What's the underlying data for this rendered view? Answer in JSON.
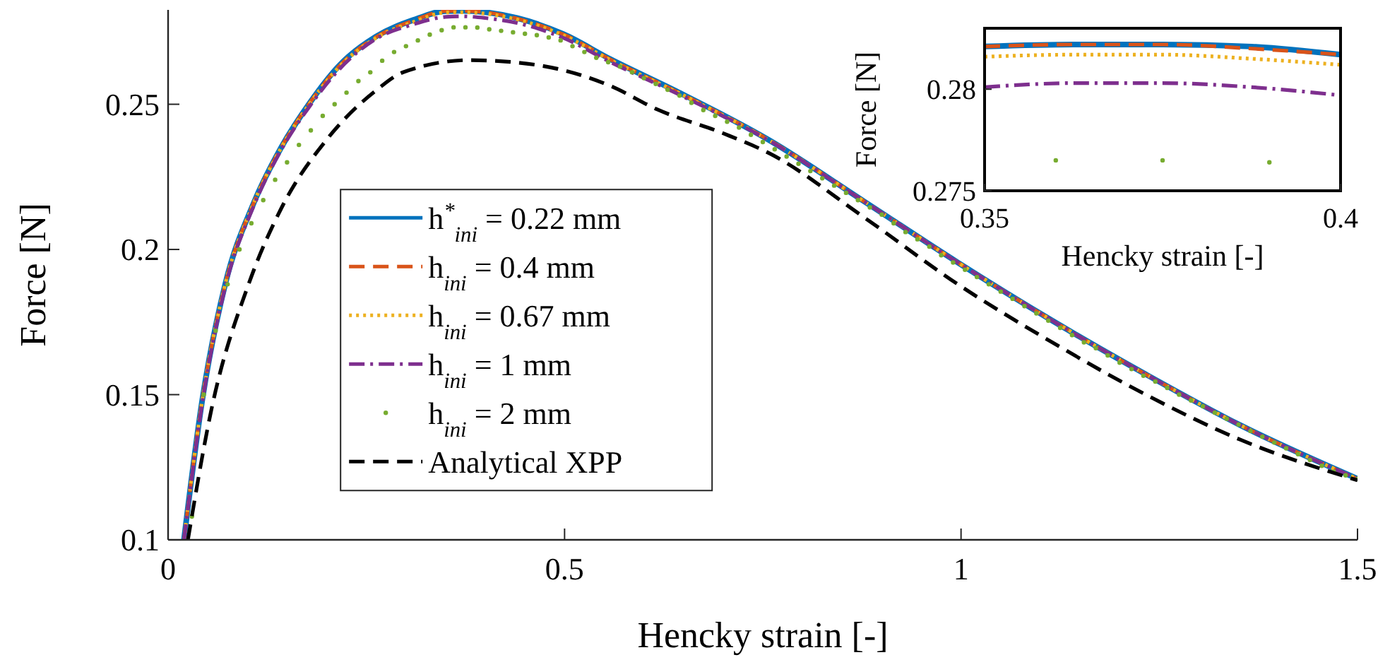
{
  "chart_data": [
    {
      "type": "line",
      "xlabel": "Hencky strain [-]",
      "ylabel": "Force [N]",
      "xlim": [
        0,
        1.5
      ],
      "xticks": [
        0,
        0.5,
        1,
        1.5
      ],
      "ylim": [
        0.1,
        0.2825
      ],
      "yticks": [
        0.1,
        0.15,
        0.2,
        0.25
      ],
      "legend": "bottom left",
      "series": [
        {
          "name": "h$^{*}$$_{ini}$ = 0.22 mm",
          "color": "#0072bd",
          "line_style": "solid",
          "x": [
            0.02,
            0.043,
            0.072,
            0.108,
            0.143,
            0.179,
            0.214,
            0.262,
            0.309,
            0.35,
            0.37,
            0.4,
            0.44,
            0.499,
            0.558,
            0.641,
            0.759,
            0.878,
            0.996,
            1.115,
            1.233,
            1.352,
            1.5
          ],
          "values": [
            0.1,
            0.148,
            0.188,
            0.216,
            0.2353,
            0.2506,
            0.2628,
            0.2733,
            0.279,
            0.2821,
            0.2822,
            0.2817,
            0.2797,
            0.2741,
            0.2655,
            0.2545,
            0.2375,
            0.2165,
            0.1955,
            0.1755,
            0.157,
            0.1395,
            0.121
          ]
        },
        {
          "name": "h$_{ini}$ = 0.4 mm",
          "color": "#d95319",
          "line_style": "dashed",
          "x": [
            0.02,
            0.043,
            0.072,
            0.108,
            0.143,
            0.179,
            0.214,
            0.262,
            0.309,
            0.35,
            0.37,
            0.4,
            0.44,
            0.499,
            0.558,
            0.641,
            0.759,
            0.878,
            0.996,
            1.115,
            1.233,
            1.352,
            1.5
          ],
          "values": [
            0.1,
            0.148,
            0.188,
            0.216,
            0.2353,
            0.2506,
            0.2626,
            0.2731,
            0.2788,
            0.2821,
            0.2822,
            0.2817,
            0.2795,
            0.274,
            0.2654,
            0.2544,
            0.2375,
            0.2165,
            0.1955,
            0.1755,
            0.157,
            0.1395,
            0.121
          ]
        },
        {
          "name": "h$_{ini}$ = 0.67 mm",
          "color": "#edb120",
          "line_style": "dotted",
          "x": [
            0.02,
            0.043,
            0.072,
            0.108,
            0.143,
            0.179,
            0.214,
            0.262,
            0.309,
            0.35,
            0.37,
            0.4,
            0.44,
            0.499,
            0.558,
            0.641,
            0.759,
            0.878,
            0.996,
            1.115,
            1.233,
            1.352,
            1.5
          ],
          "values": [
            0.1,
            0.148,
            0.188,
            0.216,
            0.2352,
            0.2504,
            0.2624,
            0.2728,
            0.2783,
            0.2816,
            0.2817,
            0.2812,
            0.2792,
            0.2737,
            0.2652,
            0.2543,
            0.2374,
            0.2165,
            0.1955,
            0.1755,
            0.157,
            0.1395,
            0.121
          ]
        },
        {
          "name": "h$_{ini}$ = 1 mm",
          "color": "#7e2f8e",
          "line_style": "dashdot",
          "x": [
            0.02,
            0.043,
            0.072,
            0.108,
            0.143,
            0.179,
            0.214,
            0.262,
            0.309,
            0.35,
            0.37,
            0.4,
            0.44,
            0.499,
            0.558,
            0.641,
            0.759,
            0.878,
            0.996,
            1.115,
            1.233,
            1.352,
            1.5
          ],
          "values": [
            0.1,
            0.147,
            0.187,
            0.215,
            0.2345,
            0.2495,
            0.2615,
            0.2725,
            0.2775,
            0.2801,
            0.2803,
            0.2797,
            0.278,
            0.2728,
            0.2645,
            0.2538,
            0.2373,
            0.2165,
            0.1955,
            0.1755,
            0.157,
            0.1395,
            0.121
          ]
        },
        {
          "name": "h$_{ini}$ = 2 mm",
          "color": "#77ac30",
          "type": "scatter",
          "marker": "circle",
          "x": [
            0.03,
            0.045,
            0.06,
            0.075,
            0.09,
            0.105,
            0.12,
            0.135,
            0.15,
            0.165,
            0.18,
            0.195,
            0.21,
            0.225,
            0.24,
            0.255,
            0.27,
            0.285,
            0.3,
            0.315,
            0.33,
            0.345,
            0.36,
            0.375,
            0.39,
            0.405,
            0.42,
            0.435,
            0.45,
            0.465,
            0.48,
            0.495,
            0.51,
            0.525,
            0.54,
            0.555,
            0.57,
            0.585,
            0.6,
            0.615,
            0.63,
            0.645,
            0.66,
            0.675,
            0.69,
            0.705,
            0.72,
            0.735,
            0.75,
            0.765,
            0.78,
            0.795,
            0.81,
            0.825,
            0.84,
            0.855,
            0.87,
            0.885,
            0.9,
            0.915,
            0.93,
            0.945,
            0.96,
            0.975,
            0.99,
            1.005,
            1.02,
            1.035,
            1.05,
            1.065,
            1.08,
            1.095,
            1.11,
            1.125,
            1.14,
            1.155,
            1.17,
            1.185,
            1.2,
            1.215,
            1.23,
            1.245,
            1.26,
            1.275,
            1.29,
            1.305,
            1.32,
            1.335,
            1.35,
            1.365,
            1.38,
            1.395,
            1.41,
            1.425,
            1.44,
            1.455,
            1.47,
            1.485,
            1.5
          ],
          "values": [
            0.108,
            0.15,
            0.172,
            0.188,
            0.2,
            0.209,
            0.217,
            0.224,
            0.23,
            0.236,
            0.241,
            0.246,
            0.25,
            0.254,
            0.258,
            0.261,
            0.265,
            0.268,
            0.27,
            0.272,
            0.274,
            0.2755,
            0.2765,
            0.2765,
            0.2764,
            0.2758,
            0.2753,
            0.2748,
            0.2743,
            0.2738,
            0.273,
            0.272,
            0.27,
            0.268,
            0.266,
            0.2645,
            0.263,
            0.261,
            0.259,
            0.257,
            0.255,
            0.253,
            0.2505,
            0.248,
            0.246,
            0.244,
            0.242,
            0.2395,
            0.237,
            0.2345,
            0.232,
            0.2295,
            0.227,
            0.2245,
            0.222,
            0.2195,
            0.217,
            0.2145,
            0.212,
            0.209,
            0.206,
            0.2035,
            0.201,
            0.198,
            0.1955,
            0.193,
            0.1905,
            0.188,
            0.1855,
            0.183,
            0.1805,
            0.178,
            0.1755,
            0.173,
            0.1705,
            0.168,
            0.166,
            0.1635,
            0.161,
            0.1588,
            0.1565,
            0.1545,
            0.1523,
            0.15,
            0.148,
            0.146,
            0.1438,
            0.1417,
            0.1397,
            0.1375,
            0.1355,
            0.1335,
            0.1315,
            0.1295,
            0.1275,
            0.1255,
            0.1235,
            0.1222,
            0.121
          ]
        },
        {
          "name": "Analytical XPP",
          "color": "#000000",
          "line_style": "dashed",
          "x": [
            0.025,
            0.0545,
            0.102,
            0.143,
            0.202,
            0.262,
            0.297,
            0.38,
            0.463,
            0.558,
            0.617,
            0.7,
            0.759,
            0.878,
            0.996,
            1.115,
            1.233,
            1.352,
            1.5
          ],
          "values": [
            0.1,
            0.1447,
            0.1884,
            0.2143,
            0.2385,
            0.2547,
            0.2611,
            0.2652,
            0.2636,
            0.2563,
            0.2482,
            0.24,
            0.233,
            0.211,
            0.188,
            0.168,
            0.15,
            0.1345,
            0.1205
          ]
        }
      ]
    },
    {
      "type": "line",
      "xlabel": "Hencky strain [-]",
      "ylabel": "Force [N]",
      "xlim": [
        0.35,
        0.4
      ],
      "xticks": [
        0.35,
        0.4
      ],
      "ylim": [
        0.275,
        0.283
      ],
      "yticks": [
        0.275,
        0.28
      ],
      "series": [
        {
          "color": "#0072bd",
          "line_style": "solid",
          "x": [
            0.35,
            0.3625,
            0.375,
            0.3875,
            0.4
          ],
          "values": [
            0.2821,
            0.2822,
            0.2822,
            0.2821,
            0.2817
          ]
        },
        {
          "color": "#d95319",
          "line_style": "dashed",
          "x": [
            0.35,
            0.3625,
            0.375,
            0.3875,
            0.4
          ],
          "values": [
            0.2821,
            0.2822,
            0.2822,
            0.282,
            0.2817
          ]
        },
        {
          "color": "#edb120",
          "line_style": "dotted",
          "x": [
            0.35,
            0.3625,
            0.375,
            0.3875,
            0.4
          ],
          "values": [
            0.2816,
            0.2817,
            0.2817,
            0.2815,
            0.2812
          ]
        },
        {
          "color": "#7e2f8e",
          "line_style": "dashdot",
          "x": [
            0.35,
            0.3625,
            0.375,
            0.3875,
            0.4
          ],
          "values": [
            0.2801,
            0.2803,
            0.2803,
            0.2801,
            0.2797
          ]
        },
        {
          "color": "#77ac30",
          "type": "scatter",
          "marker": "circle",
          "x": [
            0.36,
            0.375,
            0.39
          ],
          "values": [
            0.2765,
            0.2765,
            0.2764
          ]
        }
      ]
    }
  ]
}
